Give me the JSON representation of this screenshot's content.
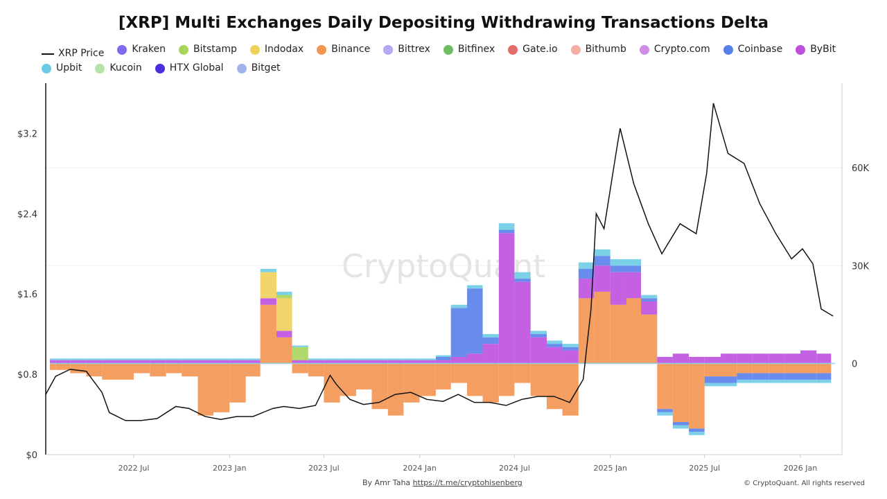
{
  "chart_data": {
    "type": "bar",
    "title": "[XRP] Multi Exchanges Daily Depositing Withdrawing Transactions Delta",
    "legend_placement": "top",
    "legend": [
      {
        "name": "XRP Price",
        "color": "#111111",
        "kind": "line"
      },
      {
        "name": "Kraken",
        "color": "#7b6cf0"
      },
      {
        "name": "Bitstamp",
        "color": "#a8d45a"
      },
      {
        "name": "Indodax",
        "color": "#f0cf5a"
      },
      {
        "name": "Binance",
        "color": "#f39550"
      },
      {
        "name": "Bittrex",
        "color": "#b3a8f2"
      },
      {
        "name": "Bitfinex",
        "color": "#6cbf5c"
      },
      {
        "name": "Gate.io",
        "color": "#e56a6a"
      },
      {
        "name": "Bithumb",
        "color": "#f4aea6"
      },
      {
        "name": "Crypto.com",
        "color": "#d08fe6"
      },
      {
        "name": "Coinbase",
        "color": "#5680e9"
      },
      {
        "name": "ByBit",
        "color": "#be4fdf"
      },
      {
        "name": "Upbit",
        "color": "#6ecbe6"
      },
      {
        "name": "Kucoin",
        "color": "#b3e3a6"
      },
      {
        "name": "HTX Global",
        "color": "#4a2fe0"
      },
      {
        "name": "Bitget",
        "color": "#9eb4ea"
      }
    ],
    "x_ticks": [
      "2022 Jul",
      "2023 Jan",
      "2023 Jul",
      "2024 Jan",
      "2024 Jul",
      "2025 Jan",
      "2025 Jul",
      "2026 Jan"
    ],
    "x_tick_dates": [
      "2022-07-01",
      "2023-01-01",
      "2023-07-01",
      "2024-01-01",
      "2024-07-01",
      "2025-01-01",
      "2025-07-01",
      "2026-01-01"
    ],
    "y_left": {
      "ticks": [
        "$0",
        "$0.8",
        "$1.6",
        "$2.4",
        "$3.2"
      ],
      "tick_values": [
        0,
        0.8,
        1.6,
        2.4,
        3.2
      ],
      "range": [
        0,
        3.7
      ]
    },
    "y_right": {
      "ticks": [
        "0",
        "30K",
        "60K"
      ],
      "tick_values": [
        0,
        30000,
        60000
      ],
      "range": [
        -28000,
        86000
      ]
    },
    "grid": "horizontal at right-axis ticks",
    "months": [
      "2022-01",
      "2022-02",
      "2022-03",
      "2022-04",
      "2022-05",
      "2022-06",
      "2022-07",
      "2022-08",
      "2022-09",
      "2022-10",
      "2022-11",
      "2022-12",
      "2023-01",
      "2023-02",
      "2023-03",
      "2023-04",
      "2023-05",
      "2023-06",
      "2023-07",
      "2023-08",
      "2023-09",
      "2023-10",
      "2023-11",
      "2023-12",
      "2024-01",
      "2024-02",
      "2024-03",
      "2024-04",
      "2024-05",
      "2024-06",
      "2024-07",
      "2024-08",
      "2024-09",
      "2024-10",
      "2024-11",
      "2024-12",
      "2025-01",
      "2025-02",
      "2025-03",
      "2025-04",
      "2025-05",
      "2025-06",
      "2025-07",
      "2025-08",
      "2025-09",
      "2025-10",
      "2025-11",
      "2025-12",
      "2026-01",
      "2026-02"
    ],
    "series": [
      {
        "name": "Binance",
        "values": [
          -2000,
          -2000,
          -3000,
          -4000,
          -5000,
          -5000,
          -3000,
          -4000,
          -3000,
          -4000,
          -16000,
          -15000,
          -12000,
          -4000,
          18000,
          8000,
          -3000,
          -4000,
          -12000,
          -10000,
          -8000,
          -14000,
          -16000,
          -12000,
          -10000,
          -8000,
          -6000,
          -10000,
          -12000,
          -10000,
          -6000,
          -10000,
          -14000,
          -16000,
          20000,
          22000,
          18000,
          20000,
          15000,
          -14000,
          -18000,
          -20000,
          -4000,
          -4000,
          -3000,
          -3000,
          -3000,
          -3000,
          -3000,
          -3000
        ]
      },
      {
        "name": "ByBit",
        "values": [
          1000,
          1000,
          1000,
          1000,
          1000,
          1000,
          1000,
          1000,
          1000,
          1000,
          1000,
          1000,
          1000,
          1000,
          2000,
          2000,
          1000,
          1000,
          1000,
          1000,
          1000,
          1000,
          1000,
          1000,
          1000,
          1000,
          2000,
          3000,
          6000,
          40000,
          25000,
          8000,
          5000,
          4000,
          6000,
          8000,
          10000,
          8000,
          4000,
          2000,
          3000,
          2000,
          2000,
          3000,
          3000,
          3000,
          3000,
          3000,
          4000,
          3000
        ]
      },
      {
        "name": "Coinbase",
        "values": [
          0,
          0,
          0,
          0,
          0,
          0,
          0,
          0,
          0,
          0,
          0,
          0,
          0,
          0,
          0,
          0,
          0,
          0,
          0,
          0,
          0,
          0,
          0,
          0,
          0,
          1000,
          15000,
          20000,
          2000,
          1000,
          1000,
          1000,
          1000,
          1000,
          3000,
          3000,
          2000,
          2000,
          1000,
          -1000,
          -1000,
          -1000,
          -2000,
          -2000,
          -2000,
          -2000,
          -2000,
          -2000,
          -2000,
          -2000
        ]
      },
      {
        "name": "Indodax",
        "values": [
          0,
          0,
          0,
          0,
          0,
          0,
          0,
          0,
          0,
          0,
          0,
          0,
          0,
          0,
          8000,
          10000,
          0,
          0,
          0,
          0,
          0,
          0,
          0,
          0,
          0,
          0,
          0,
          0,
          0,
          0,
          0,
          0,
          0,
          0,
          0,
          0,
          0,
          0,
          0,
          0,
          0,
          0,
          0,
          0,
          0,
          0,
          0,
          0,
          0,
          0
        ]
      },
      {
        "name": "Bitstamp",
        "values": [
          0,
          0,
          0,
          0,
          0,
          0,
          0,
          0,
          0,
          0,
          0,
          0,
          0,
          0,
          0,
          1000,
          4000,
          0,
          0,
          0,
          0,
          0,
          0,
          0,
          0,
          0,
          0,
          0,
          0,
          0,
          0,
          0,
          0,
          0,
          0,
          0,
          0,
          0,
          0,
          0,
          0,
          0,
          0,
          0,
          0,
          0,
          0,
          0,
          0,
          0
        ]
      },
      {
        "name": "Upbit",
        "values": [
          500,
          500,
          500,
          500,
          500,
          500,
          500,
          500,
          500,
          500,
          500,
          500,
          500,
          500,
          1000,
          1000,
          500,
          500,
          500,
          500,
          500,
          500,
          500,
          500,
          500,
          500,
          1000,
          1000,
          1000,
          2000,
          2000,
          1000,
          1000,
          1000,
          2000,
          2000,
          2000,
          2000,
          1000,
          -1000,
          -1000,
          -1000,
          -1000,
          -1000,
          -1000,
          -1000,
          -1000,
          -1000,
          -1000,
          -1000
        ]
      }
    ],
    "price": {
      "name": "XRP Price",
      "dates": [
        "2022-01-13",
        "2022-02-01",
        "2022-03-01",
        "2022-04-01",
        "2022-05-01",
        "2022-05-15",
        "2022-06-15",
        "2022-07-15",
        "2022-08-15",
        "2022-09-20",
        "2022-10-15",
        "2022-11-15",
        "2022-12-15",
        "2023-01-15",
        "2023-02-15",
        "2023-03-25",
        "2023-04-15",
        "2023-05-15",
        "2023-06-15",
        "2023-07-13",
        "2023-07-25",
        "2023-08-20",
        "2023-09-15",
        "2023-10-15",
        "2023-11-15",
        "2023-12-15",
        "2024-01-15",
        "2024-02-15",
        "2024-03-15",
        "2024-04-15",
        "2024-05-15",
        "2024-06-15",
        "2024-07-15",
        "2024-08-15",
        "2024-09-15",
        "2024-10-15",
        "2024-11-10",
        "2024-11-25",
        "2024-12-05",
        "2024-12-20",
        "2025-01-15",
        "2025-01-20",
        "2025-02-15",
        "2025-03-15",
        "2025-04-10",
        "2025-05-15",
        "2025-06-15",
        "2025-07-05",
        "2025-07-18",
        "2025-08-15",
        "2025-09-15",
        "2025-10-15",
        "2025-11-15",
        "2025-12-15",
        "2026-01-05",
        "2026-01-25",
        "2026-02-10",
        "2026-03-05"
      ],
      "values": [
        0.6,
        0.78,
        0.85,
        0.83,
        0.62,
        0.42,
        0.34,
        0.34,
        0.36,
        0.48,
        0.46,
        0.38,
        0.35,
        0.38,
        0.38,
        0.46,
        0.48,
        0.46,
        0.49,
        0.79,
        0.7,
        0.55,
        0.5,
        0.52,
        0.6,
        0.62,
        0.55,
        0.53,
        0.6,
        0.52,
        0.52,
        0.49,
        0.55,
        0.58,
        0.58,
        0.52,
        0.75,
        1.45,
        2.4,
        2.25,
        3.1,
        3.25,
        2.7,
        2.3,
        2.0,
        2.3,
        2.2,
        2.8,
        3.5,
        3.0,
        2.9,
        2.5,
        2.2,
        1.95,
        2.05,
        1.9,
        1.45,
        1.38
      ]
    },
    "watermark": "CryptoQuant"
  },
  "footer": {
    "credit_prefix": "By Amr Taha",
    "credit_link": "https://t.me/cryptohisenberg",
    "copyright": "© CryptoQuant. All rights reserved"
  }
}
